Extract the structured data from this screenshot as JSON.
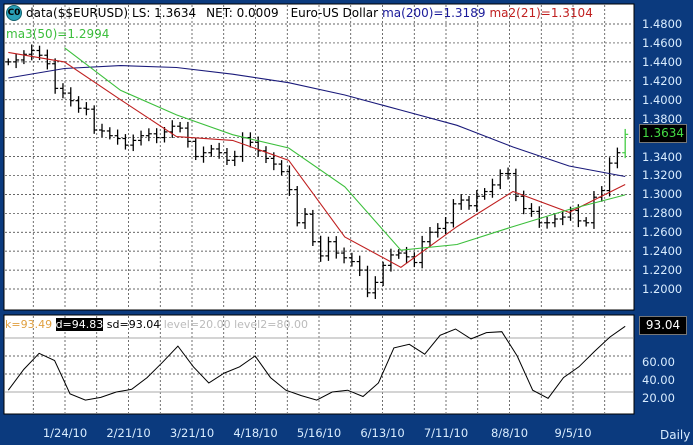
{
  "header": {
    "icon_label": "C0",
    "data_label": "data($$EURUSD)",
    "ls": "LS: 1.3634",
    "net": "NET: 0.0009",
    "name": "Euro-US Dollar",
    "ma200": "ma(200)=1.3189",
    "ma21": "ma2(21)=1.3104",
    "ma50": "ma3(50)=1.2994"
  },
  "colors": {
    "frame": "#0b3a7e",
    "price": "#000000",
    "ma200": "#1a1a7a",
    "ma21": "#c02020",
    "ma50": "#3cbf3c",
    "stoch": "#000000",
    "k": "#e0a040",
    "axis_text": "#d8ecff",
    "last_price": "#44dd44"
  },
  "stochastic_header": {
    "k": "k=93.49",
    "d": "d=94.83",
    "sd": "sd=93.04",
    "level": "level=20.00",
    "level2": "level2=80.00"
  },
  "last_price_label": "1.3634",
  "last_stoch_label": "93.04",
  "timeframe": "Daily",
  "chart_data": [
    {
      "type": "ohlc-bar",
      "date_range": [
        "2009-12-30",
        "2010-09-28"
      ],
      "y_ticks": [
        "1.4800",
        "1.4600",
        "1.4400",
        "1.4200",
        "1.4000",
        "1.3800",
        "1.3600",
        "1.3400",
        "1.3200",
        "1.3000",
        "1.2800",
        "1.2600",
        "1.2400",
        "1.2200",
        "1.2000"
      ],
      "ylim": [
        1.18,
        1.495
      ],
      "x_ticks": [
        "1/24/10",
        "2/21/10",
        "3/21/10",
        "4/18/10",
        "5/16/10",
        "6/13/10",
        "7/11/10",
        "8/8/10",
        "9/5/10"
      ],
      "x_tick_dates": [
        "2010-01-24",
        "2010-02-21",
        "2010-03-21",
        "2010-04-18",
        "2010-05-16",
        "2010-06-13",
        "2010-07-11",
        "2010-08-08",
        "2010-09-05"
      ],
      "grid": true,
      "closes": [
        1.44,
        1.442,
        1.448,
        1.452,
        1.447,
        1.438,
        1.412,
        1.407,
        1.399,
        1.391,
        1.39,
        1.368,
        1.367,
        1.362,
        1.359,
        1.352,
        1.357,
        1.362,
        1.364,
        1.36,
        1.366,
        1.372,
        1.37,
        1.356,
        1.34,
        1.344,
        1.348,
        1.344,
        1.336,
        1.34,
        1.36,
        1.355,
        1.346,
        1.338,
        1.332,
        1.324,
        1.305,
        1.27,
        1.279,
        1.25,
        1.235,
        1.25,
        1.238,
        1.233,
        1.229,
        1.22,
        1.196,
        1.207,
        1.225,
        1.236,
        1.238,
        1.234,
        1.228,
        1.25,
        1.26,
        1.264,
        1.27,
        1.29,
        1.294,
        1.288,
        1.298,
        1.303,
        1.31,
        1.322,
        1.322,
        1.298,
        1.285,
        1.282,
        1.27,
        1.27,
        1.274,
        1.276,
        1.283,
        1.272,
        1.27,
        1.297,
        1.304,
        1.333,
        1.344,
        1.3634
      ],
      "series": [
        {
          "name": "ma(200)",
          "values": [
            1.423,
            1.433,
            1.436,
            1.434,
            1.427,
            1.418,
            1.405,
            1.389,
            1.373,
            1.35,
            1.33,
            1.3189
          ]
        },
        {
          "name": "ma2(21)",
          "values": [
            1.45,
            1.44,
            1.4,
            1.361,
            1.357,
            1.336,
            1.255,
            1.223,
            1.266,
            1.303,
            1.281,
            1.3104
          ]
        },
        {
          "name": "ma3(50)",
          "values": [
            null,
            1.455,
            1.41,
            1.384,
            1.363,
            1.349,
            1.308,
            1.241,
            1.247,
            1.266,
            1.284,
            1.2994
          ]
        }
      ]
    },
    {
      "type": "line",
      "name": "sd",
      "date_range": [
        "2009-12-30",
        "2010-09-28"
      ],
      "y_ticks": [
        "60.00",
        "40.00",
        "20.00"
      ],
      "ylim": [
        0,
        100
      ],
      "levels": [
        20,
        80
      ],
      "values": [
        22,
        45,
        63,
        55,
        18,
        11,
        14,
        20,
        23,
        36,
        53,
        71,
        48,
        30,
        41,
        48,
        60,
        36,
        22,
        16,
        11,
        20,
        22,
        15,
        30,
        69,
        73,
        62,
        83,
        90,
        79,
        86,
        87,
        60,
        22,
        13,
        36,
        48,
        65,
        81,
        93
      ]
    }
  ]
}
